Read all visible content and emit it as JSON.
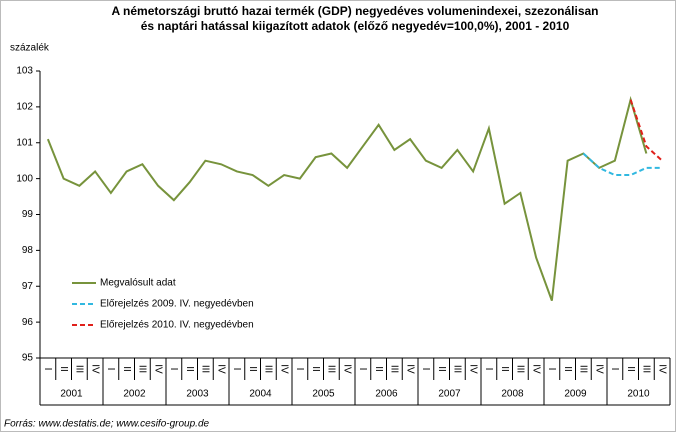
{
  "chart_data": {
    "type": "line",
    "title": [
      "A németországi bruttó hazai termék (GDP) negyedéves volumenindexei, szezonálisan",
      "és naptári hatással kiigazított adatok (előző negyedév=100,0%), 2001 - 2010"
    ],
    "y_label": "százalék",
    "source": "Forrás: www.destatis.de; www.cesifo-group.de",
    "categories": [
      "I",
      "II",
      "III",
      "IV",
      "I",
      "II",
      "III",
      "IV",
      "I",
      "II",
      "III",
      "IV",
      "I",
      "II",
      "III",
      "IV",
      "I",
      "II",
      "III",
      "IV",
      "I",
      "II",
      "III",
      "IV",
      "I",
      "II",
      "III",
      "IV",
      "I",
      "II",
      "III",
      "IV",
      "I",
      "II",
      "III",
      "IV",
      "I",
      "II",
      "III",
      "IV"
    ],
    "years": [
      "2001",
      "2002",
      "2003",
      "2004",
      "2005",
      "2006",
      "2007",
      "2008",
      "2009",
      "2010"
    ],
    "series": [
      {
        "name": "Megvalósult adat",
        "color": "#77933c",
        "dash": false,
        "values": [
          101.1,
          100.0,
          99.8,
          100.2,
          99.6,
          100.2,
          100.4,
          99.8,
          99.4,
          99.9,
          100.5,
          100.4,
          100.2,
          100.1,
          99.8,
          100.1,
          100.0,
          100.6,
          100.7,
          100.3,
          100.9,
          101.5,
          100.8,
          101.1,
          100.5,
          100.3,
          100.8,
          100.2,
          101.4,
          99.3,
          99.6,
          97.8,
          96.6,
          100.5,
          100.7,
          100.3,
          100.5,
          102.2,
          100.7,
          null
        ]
      },
      {
        "name": "Előrejelzés 2009. IV. negyedévben",
        "color": "#31b8e0",
        "dash": true,
        "values": [
          null,
          null,
          null,
          null,
          null,
          null,
          null,
          null,
          null,
          null,
          null,
          null,
          null,
          null,
          null,
          null,
          null,
          null,
          null,
          null,
          null,
          null,
          null,
          null,
          null,
          null,
          null,
          null,
          null,
          null,
          null,
          null,
          null,
          null,
          100.7,
          100.3,
          100.1,
          100.1,
          100.3,
          100.3
        ]
      },
      {
        "name": "Előrejelzés 2010. IV. negyedévben",
        "color": "#e0201b",
        "dash": true,
        "values": [
          null,
          null,
          null,
          null,
          null,
          null,
          null,
          null,
          null,
          null,
          null,
          null,
          null,
          null,
          null,
          null,
          null,
          null,
          null,
          null,
          null,
          null,
          null,
          null,
          null,
          null,
          null,
          null,
          null,
          null,
          null,
          null,
          null,
          null,
          null,
          null,
          null,
          102.2,
          100.9,
          100.5
        ]
      }
    ],
    "ylim": [
      95,
      103
    ],
    "yticks": [
      95,
      96,
      97,
      98,
      99,
      100,
      101,
      102,
      103
    ]
  }
}
